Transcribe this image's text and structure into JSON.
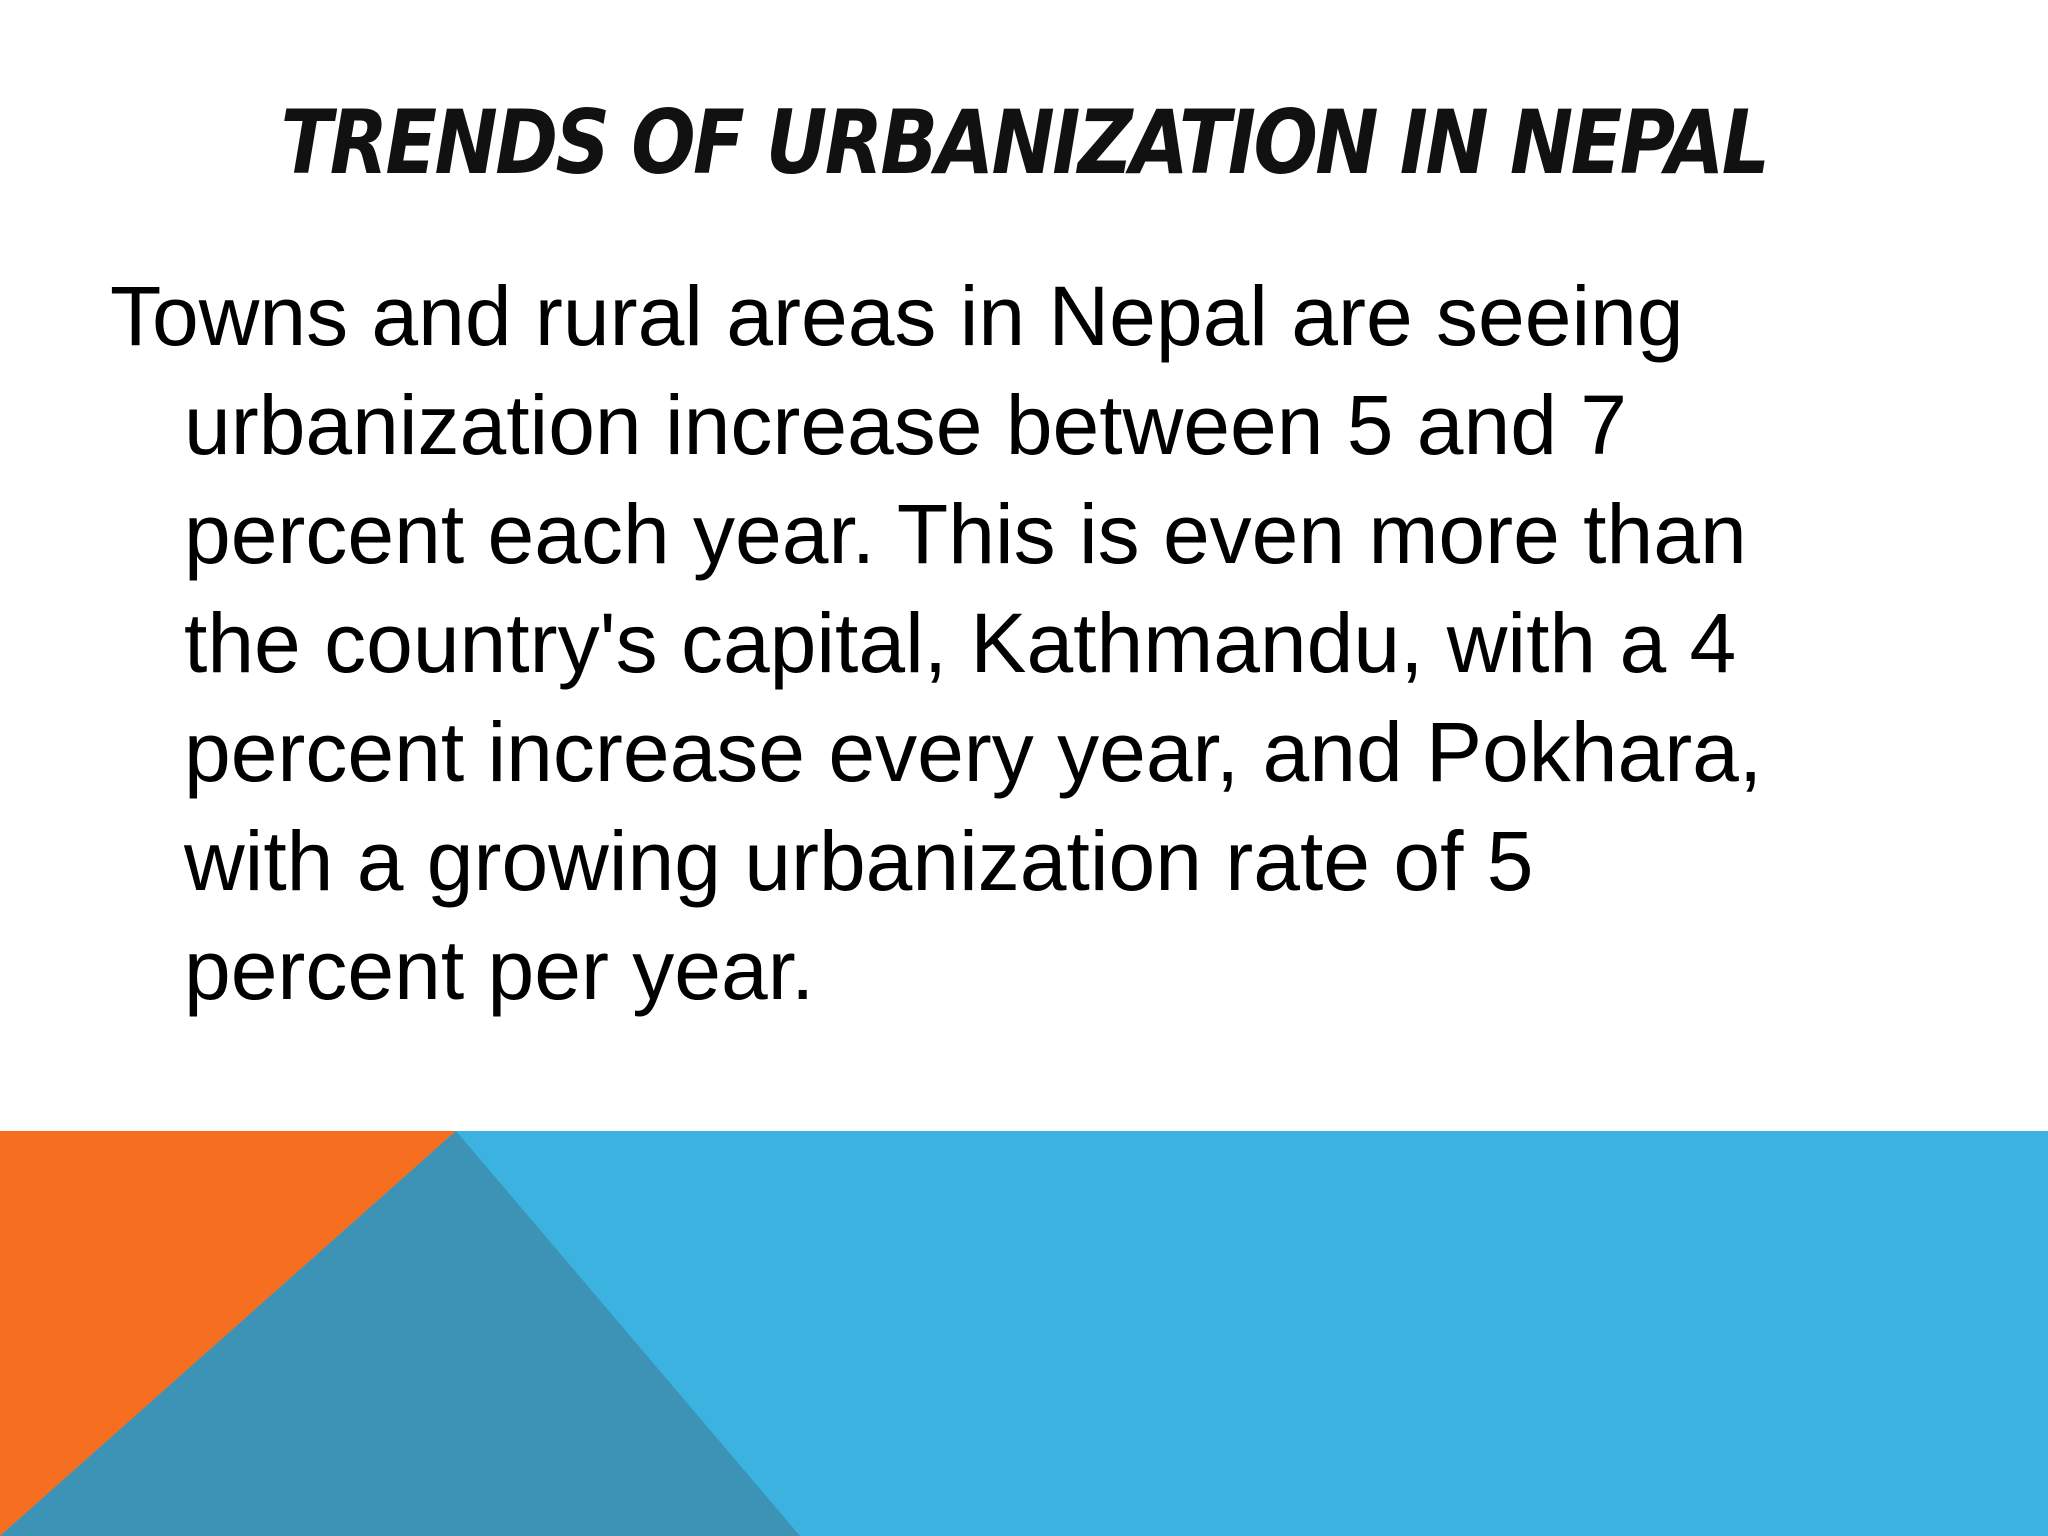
{
  "slide": {
    "title": "TRENDS OF URBANIZATION IN NEPAL",
    "body_lines": [
      "Towns and rural areas in Nepal are seeing",
      "urbanization increase between 5 and 7",
      "percent each year. This is even more than",
      "the country's capital, Kathmandu, with a 4",
      "percent increase every year, and Pokhara,",
      "with a growing urbanization rate of 5",
      "percent per year."
    ]
  },
  "colors": {
    "background": "#ffffff",
    "band_blue": "#3bb2df",
    "band_orange": "#f66e1f",
    "band_teal": "#3c93b6"
  }
}
